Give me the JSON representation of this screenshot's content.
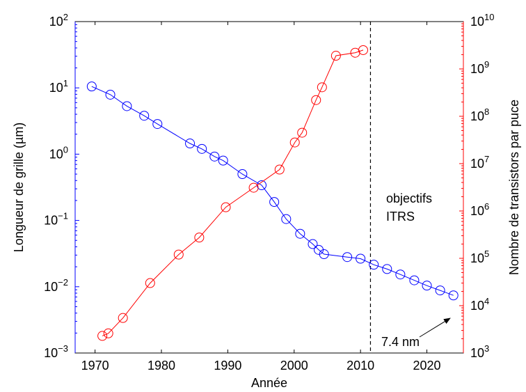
{
  "chart_data": {
    "type": "line",
    "xlabel": "Année",
    "ylabel_left": "Longueur de grille (µm)",
    "ylabel_right": "Nombre de transistors par puce",
    "xlim": [
      1967,
      2025.5
    ],
    "ylim_left": [
      0.001,
      100
    ],
    "ylim_right": [
      1000,
      10000000000
    ],
    "yscale": "log",
    "x_ticks": [
      1970,
      1980,
      1990,
      2000,
      2010,
      2020
    ],
    "y_left_ticks": [
      {
        "value": 100,
        "base": "10",
        "exp": "2"
      },
      {
        "value": 10,
        "base": "10",
        "exp": "1"
      },
      {
        "value": 1,
        "base": "10",
        "exp": "0"
      },
      {
        "value": 0.1,
        "base": "10",
        "exp": "−1"
      },
      {
        "value": 0.01,
        "base": "10",
        "exp": "−2"
      },
      {
        "value": 0.001,
        "base": "10",
        "exp": "−3"
      }
    ],
    "y_right_ticks": [
      {
        "value": 10000000000,
        "base": "10",
        "exp": "10"
      },
      {
        "value": 1000000000,
        "base": "10",
        "exp": "9"
      },
      {
        "value": 100000000,
        "base": "10",
        "exp": "8"
      },
      {
        "value": 10000000,
        "base": "10",
        "exp": "7"
      },
      {
        "value": 1000000,
        "base": "10",
        "exp": "6"
      },
      {
        "value": 100000,
        "base": "10",
        "exp": "5"
      },
      {
        "value": 10000,
        "base": "10",
        "exp": "4"
      },
      {
        "value": 1000,
        "base": "10",
        "exp": "3"
      }
    ],
    "series": [
      {
        "axis": "left",
        "color": "#0000ff",
        "x": [
          1969.5,
          1972.3,
          1974.8,
          1977.4,
          1979.4,
          1984.3,
          1986.1,
          1988.0,
          1989.3,
          1992.2,
          1995.1,
          1997.0,
          1998.8,
          2000.9,
          2002.8,
          2003.7,
          2004.5,
          2008.0,
          2010.0,
          2012.0,
          2014.0,
          2016.0,
          2018.1,
          2020.0,
          2022.0,
          2024.0
        ],
        "y": [
          10.5,
          7.9,
          5.3,
          3.8,
          2.85,
          1.45,
          1.2,
          0.92,
          0.8,
          0.5,
          0.34,
          0.19,
          0.105,
          0.063,
          0.044,
          0.036,
          0.031,
          0.028,
          0.0265,
          0.0215,
          0.0185,
          0.0153,
          0.0125,
          0.0104,
          0.0088,
          0.0074
        ]
      },
      {
        "axis": "right",
        "color": "#ff0000",
        "x": [
          1971.1,
          1972.0,
          1974.2,
          1978.3,
          1982.6,
          1985.7,
          1989.7,
          1993.9,
          1997.8,
          2000.1,
          2001.2,
          2003.3,
          2004.2,
          2006.3,
          2009.2,
          2010.4
        ],
        "y": [
          2300,
          2600,
          5500,
          30000,
          120000,
          275000,
          1200000,
          3100000,
          7500000,
          28000000,
          45000000,
          220000000,
          410000000,
          1900000000,
          2200000000,
          2500000000
        ]
      }
    ],
    "reference_line": {
      "x": 2011.5,
      "style": "dashed"
    },
    "annotations": {
      "itrs_line1": "objectifs",
      "itrs_line2": "ITRS",
      "final_label": "7.4 nm"
    }
  }
}
